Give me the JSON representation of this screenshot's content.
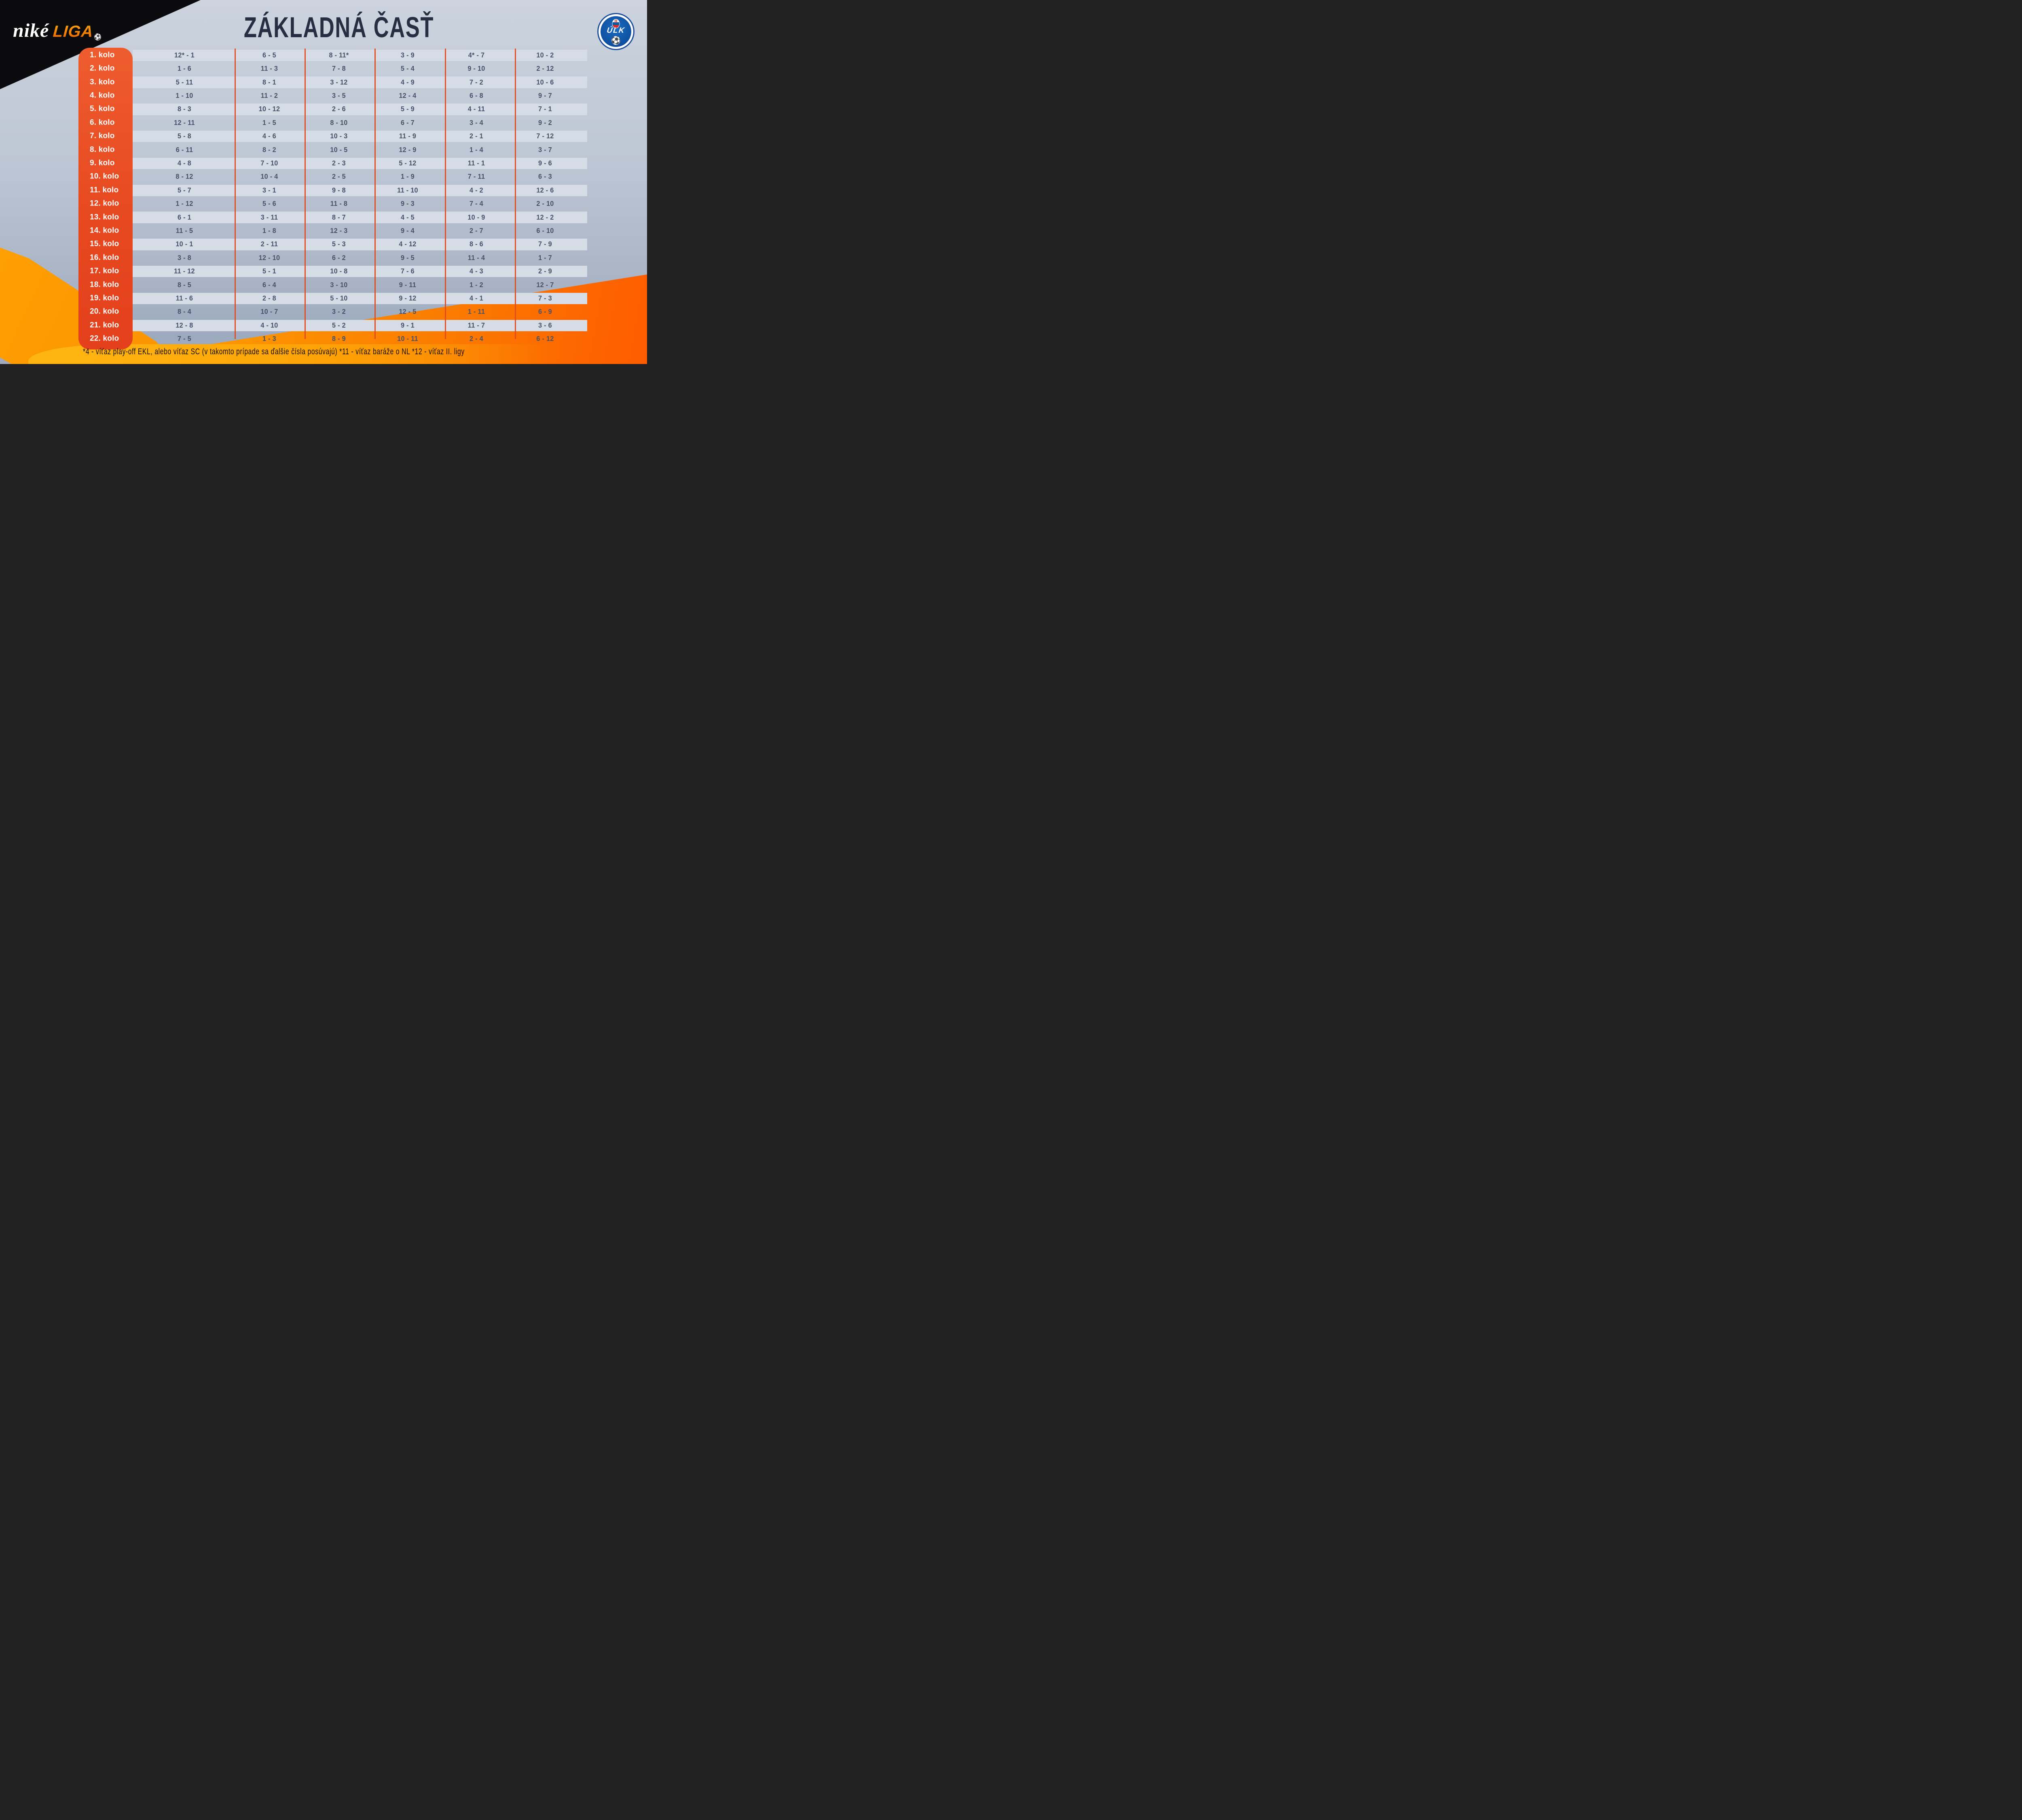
{
  "title": "ZÁKLADNÁ ČASŤ",
  "branding": {
    "wordmark_left": "niké",
    "wordmark_right": "LIGA",
    "ball_icon": "⚽"
  },
  "badge": {
    "text": "ÚLK",
    "ball_icon": "⚽"
  },
  "schedule": {
    "rounds": [
      {
        "label": "1. kolo",
        "matches": [
          "12* - 1",
          "6 - 5",
          "8 - 11*",
          "3 - 9",
          "4* - 7",
          "10 - 2"
        ]
      },
      {
        "label": "2. kolo",
        "matches": [
          "1 - 6",
          "11 - 3",
          "7 - 8",
          "5 - 4",
          "9 - 10",
          "2 - 12"
        ]
      },
      {
        "label": "3. kolo",
        "matches": [
          "5 - 11",
          "8 - 1",
          "3 - 12",
          "4 - 9",
          "7 - 2",
          "10 - 6"
        ]
      },
      {
        "label": "4. kolo",
        "matches": [
          "1 - 10",
          "11 - 2",
          "3 - 5",
          "12 - 4",
          "6 - 8",
          "9 - 7"
        ]
      },
      {
        "label": "5. kolo",
        "matches": [
          "8 - 3",
          "10 - 12",
          "2 - 6",
          "5 - 9",
          "4 - 11",
          "7 - 1"
        ]
      },
      {
        "label": "6. kolo",
        "matches": [
          "12 - 11",
          "1 - 5",
          "8 - 10",
          "6 - 7",
          "3 - 4",
          "9 - 2"
        ]
      },
      {
        "label": "7. kolo",
        "matches": [
          "5 - 8",
          "4 - 6",
          "10 - 3",
          "11 - 9",
          "2 - 1",
          "7 - 12"
        ]
      },
      {
        "label": "8. kolo",
        "matches": [
          "6 - 11",
          "8 - 2",
          "10 - 5",
          "12 - 9",
          "1 - 4",
          "3 - 7"
        ]
      },
      {
        "label": "9. kolo",
        "matches": [
          "4 - 8",
          "7 - 10",
          "2 - 3",
          "5 - 12",
          "11 - 1",
          "9 - 6"
        ]
      },
      {
        "label": "10. kolo",
        "matches": [
          "8 - 12",
          "10 - 4",
          "2 - 5",
          "1 - 9",
          "7 - 11",
          "6 - 3"
        ]
      },
      {
        "label": "11. kolo",
        "matches": [
          "5 - 7",
          "3 - 1",
          "9 - 8",
          "11 - 10",
          "4 - 2",
          "12 - 6"
        ]
      },
      {
        "label": "12. kolo",
        "matches": [
          "1 - 12",
          "5 - 6",
          "11 - 8",
          "9 - 3",
          "7 - 4",
          "2 - 10"
        ]
      },
      {
        "label": "13. kolo",
        "matches": [
          "6 - 1",
          "3 - 11",
          "8 - 7",
          "4 - 5",
          "10 - 9",
          "12 - 2"
        ]
      },
      {
        "label": "14. kolo",
        "matches": [
          "11 - 5",
          "1 - 8",
          "12 - 3",
          "9 - 4",
          "2 - 7",
          "6 - 10"
        ]
      },
      {
        "label": "15. kolo",
        "matches": [
          "10 - 1",
          "2 - 11",
          "5 - 3",
          "4 - 12",
          "8 - 6",
          "7 - 9"
        ]
      },
      {
        "label": "16. kolo",
        "matches": [
          "3 - 8",
          "12 - 10",
          "6 - 2",
          "9 - 5",
          "11 - 4",
          "1 - 7"
        ]
      },
      {
        "label": "17. kolo",
        "matches": [
          "11 - 12",
          "5 - 1",
          "10 - 8",
          "7 - 6",
          "4 - 3",
          "2 - 9"
        ]
      },
      {
        "label": "18. kolo",
        "matches": [
          "8 - 5",
          "6 - 4",
          "3 - 10",
          "9 - 11",
          "1 - 2",
          "12 - 7"
        ]
      },
      {
        "label": "19. kolo",
        "matches": [
          "11 - 6",
          "2 - 8",
          "5 - 10",
          "9 - 12",
          "4 - 1",
          "7 - 3"
        ]
      },
      {
        "label": "20. kolo",
        "matches": [
          "8 - 4",
          "10 - 7",
          "3 - 2",
          "12 - 5",
          "1 - 11",
          "6 - 9"
        ]
      },
      {
        "label": "21. kolo",
        "matches": [
          "12 - 8",
          "4 - 10",
          "5 - 2",
          "9 - 1",
          "11 - 7",
          "3 - 6"
        ]
      },
      {
        "label": "22. kolo",
        "matches": [
          "7 - 5",
          "1 - 3",
          "8 - 9",
          "10 - 11",
          "2 - 4",
          "6 - 12"
        ]
      }
    ]
  },
  "footer": {
    "note": "*4 - víťaz play-off EKL, alebo víťaz SC (v takomto prípade sa ďalšie čísla posúvajú) *11 - víťaz baráže o NL *12 - víťaz II. ligy"
  },
  "colors": {
    "pill_orange": "#e8502a",
    "separator_orange": "#e24a1e",
    "stripe_light": "#d6dce5",
    "number_navy": "#46526a",
    "title_navy": "#272e41",
    "diag_orange": "#fb7c00",
    "badge_blue": "#0d4a9a",
    "black_wedge": "#0b0b0d"
  }
}
